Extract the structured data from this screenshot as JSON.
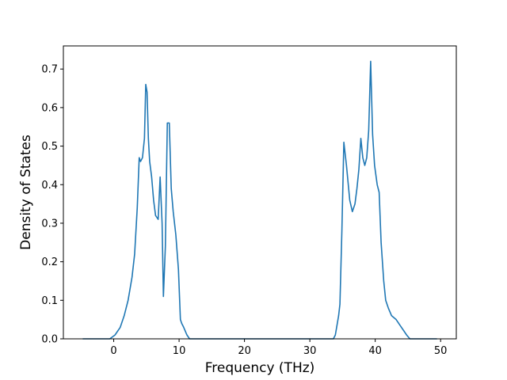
{
  "chart_data": {
    "type": "line",
    "xlabel": "Frequency (THz)",
    "ylabel": "Density of States",
    "xlim": [
      -7.7,
      52.4
    ],
    "ylim": [
      0.0,
      0.76
    ],
    "xticks": [
      0,
      10,
      20,
      30,
      40,
      50
    ],
    "yticks": [
      0.0,
      0.1,
      0.2,
      0.3,
      0.4,
      0.5,
      0.6,
      0.7
    ],
    "xtick_labels": [
      "0",
      "10",
      "20",
      "30",
      "40",
      "50"
    ],
    "ytick_labels": [
      "0.0",
      "0.1",
      "0.2",
      "0.3",
      "0.4",
      "0.5",
      "0.6",
      "0.7"
    ],
    "grid": false,
    "line_color": "#1f77b4",
    "series": [
      {
        "x": [
          -4.7,
          -0.6,
          0.2,
          1.0,
          1.6,
          2.2,
          2.8,
          3.2,
          3.6,
          3.9,
          4.1,
          4.4,
          4.7,
          4.9,
          5.1,
          5.3,
          5.5,
          5.8,
          6.1,
          6.4,
          6.8,
          7.1,
          7.4,
          7.6,
          7.9,
          8.2,
          8.5,
          8.8,
          9.1,
          9.5,
          9.9,
          10.2,
          10.4,
          10.7,
          11.2,
          11.6,
          12.5,
          33.6,
          33.9,
          34.4,
          34.6,
          34.9,
          35.2,
          35.6,
          36.1,
          36.5,
          36.9,
          37.2,
          37.5,
          37.8,
          38.1,
          38.4,
          38.7,
          39.0,
          39.3,
          39.6,
          39.9,
          40.3,
          40.6,
          40.9,
          41.3,
          41.6,
          42.0,
          42.5,
          43.2,
          44.0,
          44.8,
          45.3,
          49.4
        ],
        "y": [
          0.0,
          0.0,
          0.01,
          0.03,
          0.06,
          0.1,
          0.16,
          0.22,
          0.34,
          0.47,
          0.46,
          0.47,
          0.52,
          0.66,
          0.64,
          0.52,
          0.46,
          0.42,
          0.36,
          0.32,
          0.31,
          0.42,
          0.3,
          0.11,
          0.24,
          0.56,
          0.56,
          0.39,
          0.33,
          0.27,
          0.18,
          0.05,
          0.04,
          0.03,
          0.01,
          0.0,
          0.0,
          0.0,
          0.01,
          0.06,
          0.09,
          0.28,
          0.51,
          0.45,
          0.36,
          0.33,
          0.35,
          0.39,
          0.44,
          0.52,
          0.47,
          0.45,
          0.47,
          0.54,
          0.72,
          0.53,
          0.45,
          0.4,
          0.38,
          0.25,
          0.15,
          0.1,
          0.08,
          0.06,
          0.05,
          0.03,
          0.01,
          0.0,
          0.0
        ]
      }
    ]
  }
}
